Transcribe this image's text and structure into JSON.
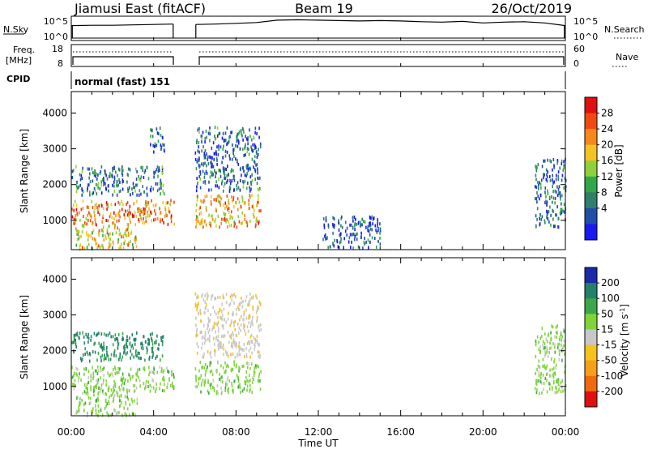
{
  "header": {
    "station_title": "Jiamusi East (fitACF)",
    "beam": "Beam 19",
    "date": "26/Oct/2019"
  },
  "top_panels": {
    "nsky_label": "N.Sky",
    "nsky_ticks": [
      "10^5",
      "10^0"
    ],
    "nsearch_label": "N.Search",
    "nsearch_ticks": [
      "10^5",
      "10^0"
    ],
    "freq_label_line1": "Freq.",
    "freq_label_line2": "[MHz]",
    "freq_ticks": [
      "18",
      "8"
    ],
    "nave_label": "Nave",
    "nave_ticks": [
      "60",
      "0"
    ],
    "cpid_label": "CPID",
    "cpid_value": "normal (fast) 151"
  },
  "power_panel": {
    "ylabel": "Slant Range [km]",
    "yticks": [
      "4000",
      "3000",
      "2000",
      "1000"
    ],
    "colorbar_label": "Power [dB]",
    "colorbar_ticks": [
      "28",
      "24",
      "20",
      "16",
      "12",
      "8",
      "4"
    ],
    "colors": [
      "#1a1af0",
      "#1f4fa8",
      "#2f7f6a",
      "#2fa84a",
      "#8fd13a",
      "#f3c322",
      "#f58a1a",
      "#f04a12",
      "#e01010"
    ]
  },
  "velocity_panel": {
    "ylabel": "Slant Range [km]",
    "yticks": [
      "4000",
      "3000",
      "2000",
      "1000"
    ],
    "colorbar_label": "Velocity [m s",
    "colorbar_label_sup": "-1",
    "colorbar_label_end": "]",
    "colorbar_ticks": [
      "200",
      "100",
      "50",
      "15",
      "-15",
      "-50",
      "-100",
      "-200"
    ],
    "colors": [
      "#1a2aa8",
      "#23806a",
      "#3aa84a",
      "#7fd43a",
      "#c8c8c8",
      "#f6c21c",
      "#f5a018",
      "#f06a10",
      "#e01010"
    ]
  },
  "xaxis": {
    "ticks": [
      "00:00",
      "04:00",
      "08:00",
      "12:00",
      "16:00",
      "20:00",
      "00:00"
    ],
    "label": "Time UT"
  },
  "chart_data": [
    {
      "type": "heatmap",
      "title": "",
      "xlabel": "Time UT",
      "ylabel": "Slant Range [km]",
      "x_range_hours": [
        0,
        24
      ],
      "y_range_km": [
        180,
        4600
      ],
      "value_range": [
        0,
        30
      ],
      "colorbar_label": "Power [dB]",
      "data_gap_hours": [
        5.0,
        6.0
      ],
      "echo_regions": [
        {
          "t_start": 0.0,
          "t_end": 5.0,
          "range_start_km": 850,
          "range_end_km": 1550,
          "value": 22
        },
        {
          "t_start": 0.2,
          "t_end": 3.2,
          "range_start_km": 180,
          "range_end_km": 900,
          "value": 18
        },
        {
          "t_start": 0.0,
          "t_end": 4.5,
          "range_start_km": 1700,
          "range_end_km": 2500,
          "value": 8
        },
        {
          "t_start": 3.8,
          "t_end": 4.5,
          "range_start_km": 2900,
          "range_end_km": 3600,
          "value": 6
        },
        {
          "t_start": 6.0,
          "t_end": 9.2,
          "range_start_km": 800,
          "range_end_km": 1700,
          "value": 20
        },
        {
          "t_start": 6.0,
          "t_end": 9.2,
          "range_start_km": 1800,
          "range_end_km": 3600,
          "value": 7
        },
        {
          "t_start": 12.2,
          "t_end": 15.0,
          "range_start_km": 200,
          "range_end_km": 1100,
          "value": 5
        },
        {
          "t_start": 22.5,
          "t_end": 24.0,
          "range_start_km": 800,
          "range_end_km": 2700,
          "value": 6
        }
      ]
    },
    {
      "type": "heatmap",
      "title": "",
      "xlabel": "Time UT",
      "ylabel": "Slant Range [km]",
      "x_range_hours": [
        0,
        24
      ],
      "y_range_km": [
        180,
        4600
      ],
      "value_range": [
        -250,
        250
      ],
      "colorbar_label": "Velocity [m s-1]",
      "data_gap_hours": [
        5.0,
        6.0
      ],
      "echo_regions": [
        {
          "t_start": 0.0,
          "t_end": 5.0,
          "range_start_km": 850,
          "range_end_km": 1550,
          "value": 0
        },
        {
          "t_start": 0.2,
          "t_end": 3.2,
          "range_start_km": 180,
          "range_end_km": 900,
          "value": 0
        },
        {
          "t_start": 0.0,
          "t_end": 4.5,
          "range_start_km": 1700,
          "range_end_km": 2500,
          "value": 60
        },
        {
          "t_start": 6.0,
          "t_end": 9.2,
          "range_start_km": 800,
          "range_end_km": 1700,
          "value": 0
        },
        {
          "t_start": 6.0,
          "t_end": 9.2,
          "range_start_km": 1800,
          "range_end_km": 3600,
          "value": -40
        },
        {
          "t_start": 22.5,
          "t_end": 24.0,
          "range_start_km": 800,
          "range_end_km": 2700,
          "value": 0
        }
      ]
    },
    {
      "type": "line",
      "title": "",
      "series": [
        {
          "name": "N.Sky",
          "x_hours": [
            0,
            1,
            2,
            3,
            4,
            4.95,
            6.05,
            7,
            8,
            9,
            10,
            11,
            12,
            13,
            14,
            15,
            16,
            17,
            18,
            19,
            20,
            21,
            22,
            23,
            24
          ],
          "values": [
            3.2,
            3.3,
            3.3,
            3.4,
            3.5,
            3.6,
            3.5,
            3.6,
            3.8,
            4.0,
            4.6,
            4.7,
            4.6,
            4.5,
            4.4,
            4.5,
            4.4,
            4.2,
            4.1,
            4.3,
            3.9,
            4.1,
            4.2,
            3.9,
            3.2
          ]
        }
      ],
      "ylim_log10": [
        0,
        5
      ]
    }
  ]
}
